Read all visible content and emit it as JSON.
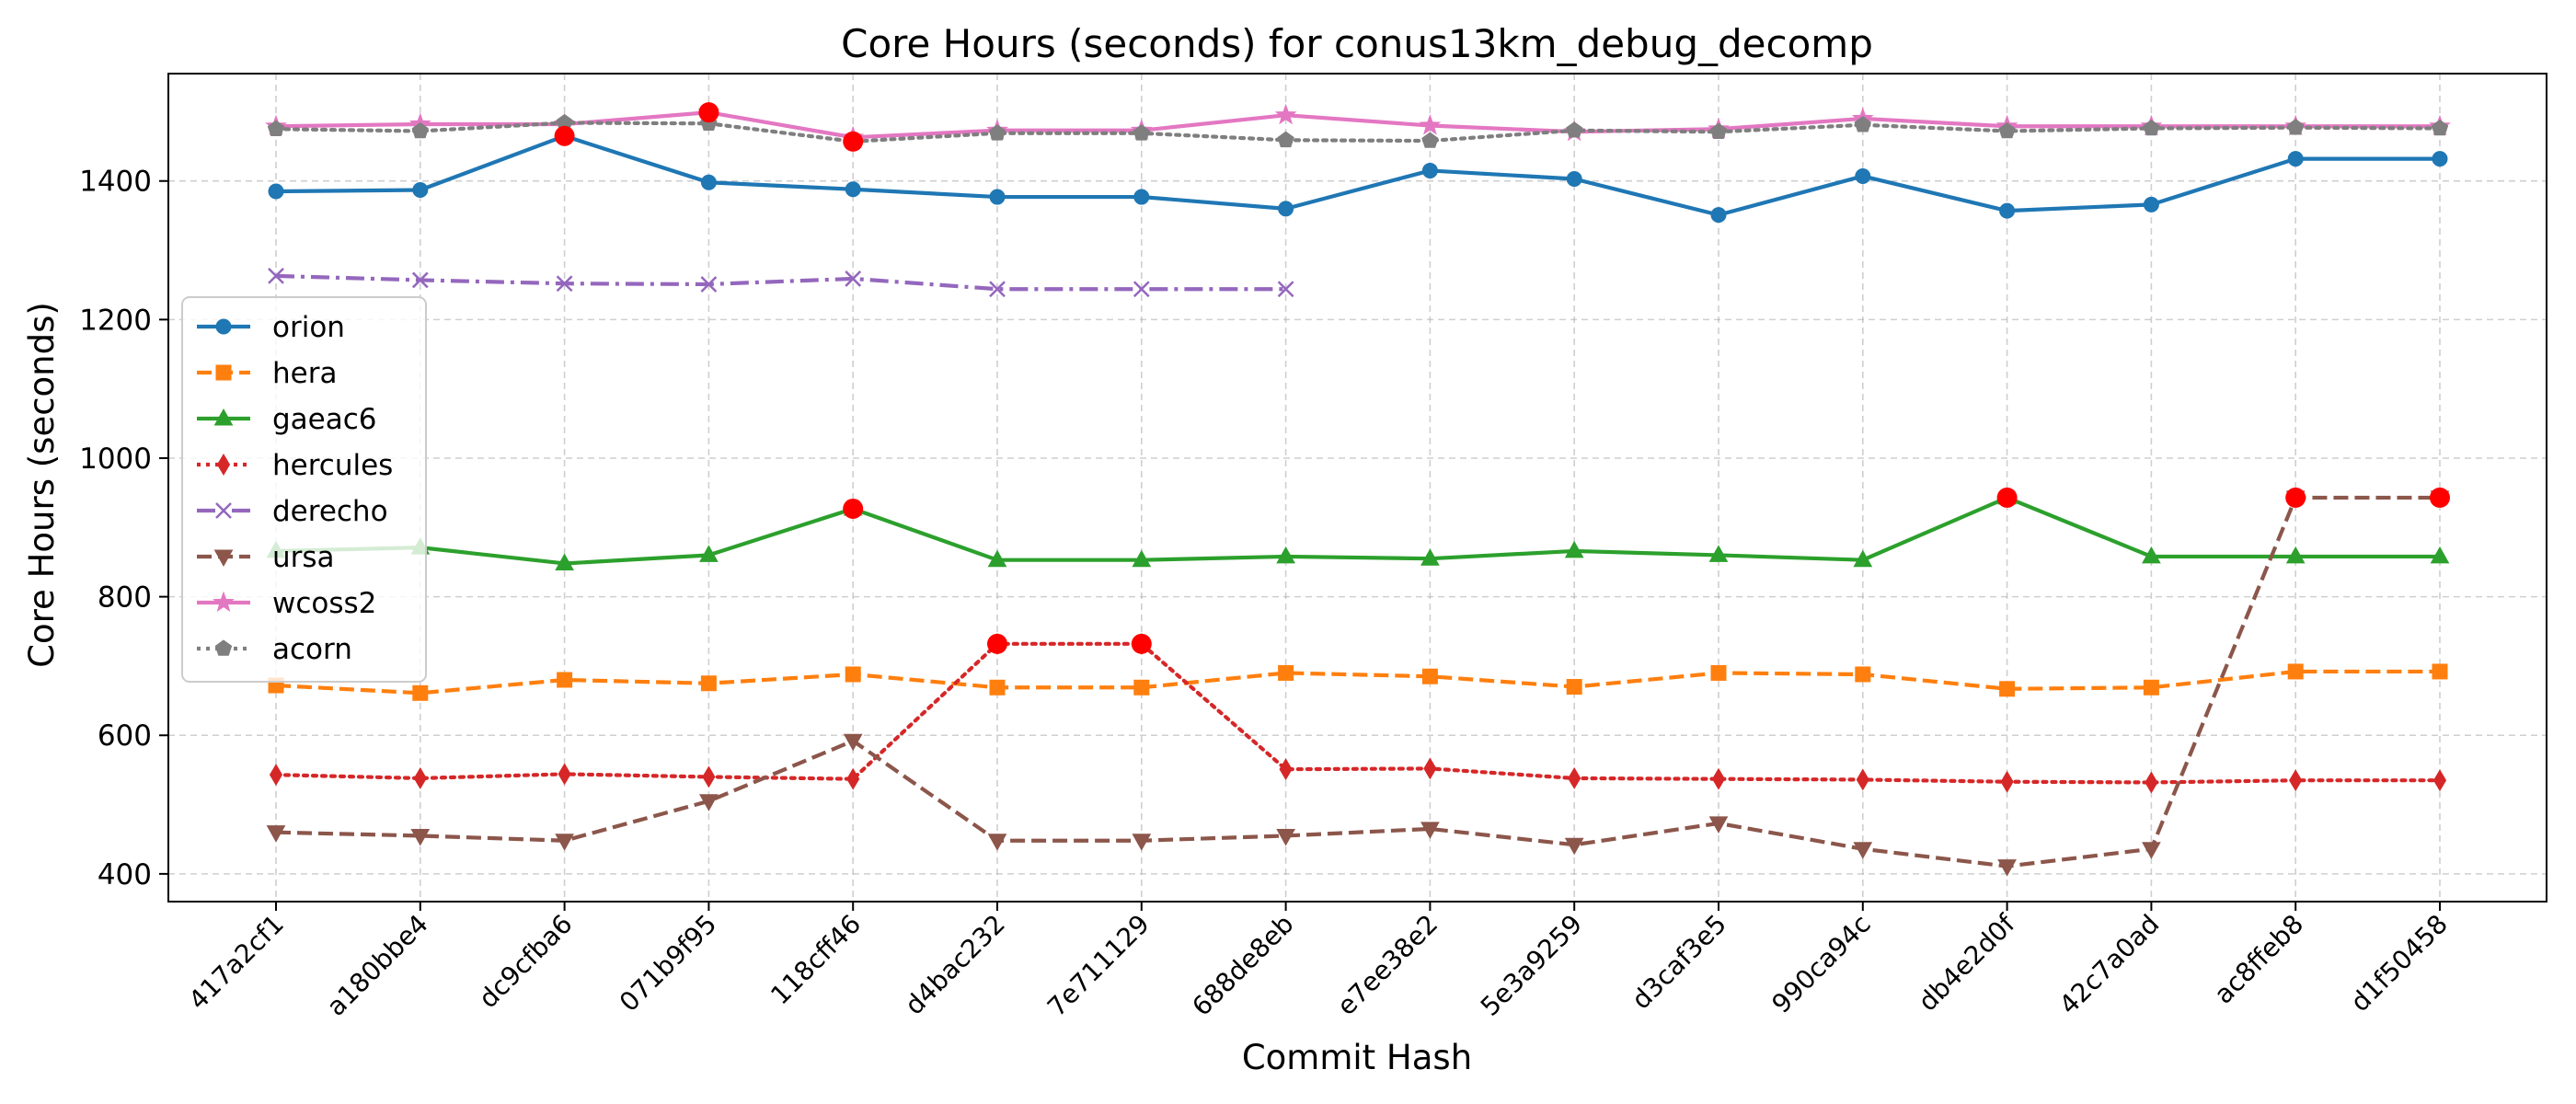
{
  "chart_data": {
    "type": "line",
    "title": "Core Hours (seconds) for conus13km_debug_decomp",
    "xlabel": "Commit Hash",
    "ylabel": "Core Hours (seconds)",
    "ylim": [
      360,
      1555
    ],
    "yticks": [
      400,
      600,
      800,
      1000,
      1200,
      1400
    ],
    "grid": true,
    "legend_position": "center-left",
    "categories": [
      "417a2cf1",
      "a180bbe4",
      "dc9cfba6",
      "071b9f95",
      "118cff46",
      "d4bac232",
      "7e711129",
      "688de8eb",
      "e7ee38e2",
      "5e3a9259",
      "d3caf3e5",
      "990ca94c",
      "db4e2d0f",
      "42c7a0ad",
      "ac8ffeb8",
      "d1f50458"
    ],
    "series": [
      {
        "name": "orion",
        "color": "#1f77b4",
        "dash": "solid",
        "marker": "circle",
        "values": [
          1385,
          1387,
          1465,
          1398,
          1388,
          1377,
          1377,
          1360,
          1415,
          1403,
          1351,
          1407,
          1357,
          1366,
          1432,
          1432
        ]
      },
      {
        "name": "hera",
        "color": "#ff7f0e",
        "dash": "dashed",
        "marker": "square",
        "values": [
          672,
          661,
          680,
          675,
          688,
          669,
          669,
          690,
          685,
          670,
          690,
          688,
          667,
          669,
          692,
          692
        ]
      },
      {
        "name": "gaeac6",
        "color": "#2ca02c",
        "dash": "solid",
        "marker": "triangle-up",
        "values": [
          866,
          871,
          848,
          860,
          927,
          853,
          853,
          858,
          855,
          866,
          860,
          853,
          943,
          858,
          858,
          858
        ]
      },
      {
        "name": "hercules",
        "color": "#d62728",
        "dash": "dotted",
        "marker": "thin-diamond",
        "values": [
          543,
          538,
          544,
          540,
          537,
          732,
          732,
          551,
          552,
          538,
          537,
          536,
          533,
          532,
          535,
          535
        ]
      },
      {
        "name": "derecho",
        "color": "#9467bd",
        "dash": "dashdot",
        "marker": "x",
        "values": [
          1263,
          1257,
          1252,
          1251,
          1259,
          1244,
          1244,
          1244,
          null,
          null,
          null,
          null,
          null,
          null,
          null,
          null
        ]
      },
      {
        "name": "ursa",
        "color": "#8c564b",
        "dash": "dashed",
        "marker": "triangle-down",
        "values": [
          460,
          455,
          448,
          505,
          592,
          448,
          448,
          455,
          465,
          442,
          473,
          436,
          411,
          436,
          943,
          943
        ]
      },
      {
        "name": "wcoss2",
        "color": "#e377c2",
        "dash": "solid",
        "marker": "star",
        "values": [
          1479,
          1482,
          1482,
          1499,
          1463,
          1473,
          1473,
          1495,
          1480,
          1471,
          1475,
          1490,
          1479,
          1479,
          1479,
          1479
        ]
      },
      {
        "name": "acorn",
        "color": "#7f7f7f",
        "dash": "dotted",
        "marker": "pentagon",
        "values": [
          1475,
          1472,
          1484,
          1483,
          1457,
          1469,
          1469,
          1459,
          1458,
          1473,
          1471,
          1481,
          1472,
          1476,
          1477,
          1476
        ]
      }
    ],
    "highlighted_points": {
      "color": "#ff0000",
      "points": [
        {
          "series": "orion",
          "commit": "dc9cfba6",
          "value": 1465
        },
        {
          "series": "wcoss2",
          "commit": "071b9f95",
          "value": 1499
        },
        {
          "series": "acorn",
          "commit": "118cff46",
          "value": 1457
        },
        {
          "series": "gaeac6",
          "commit": "118cff46",
          "value": 927
        },
        {
          "series": "hercules",
          "commit": "d4bac232",
          "value": 732
        },
        {
          "series": "hercules",
          "commit": "7e711129",
          "value": 732
        },
        {
          "series": "gaeac6",
          "commit": "db4e2d0f",
          "value": 943
        },
        {
          "series": "ursa",
          "commit": "ac8ffeb8",
          "value": 943
        },
        {
          "series": "ursa",
          "commit": "d1f50458",
          "value": 943
        }
      ]
    }
  }
}
